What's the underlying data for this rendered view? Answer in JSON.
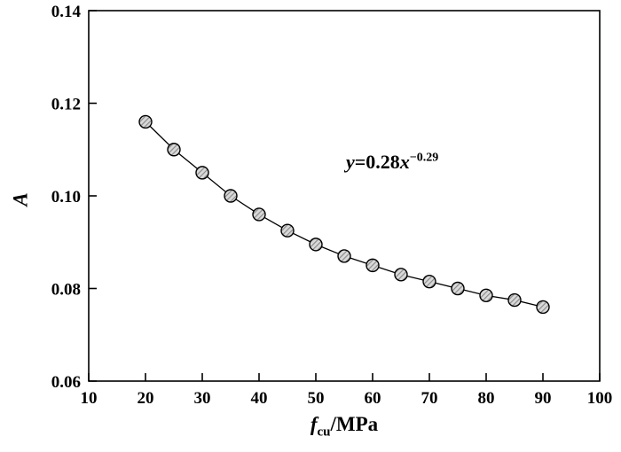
{
  "chart_data": {
    "type": "scatter",
    "title": "",
    "ylabel": "A",
    "xlabel": {
      "symbol": "f",
      "subscript": "cu",
      "unit": "/MPa"
    },
    "xlim": [
      10,
      100
    ],
    "ylim": [
      0.06,
      0.14
    ],
    "x_ticks": [
      10,
      20,
      30,
      40,
      50,
      60,
      70,
      80,
      90,
      100
    ],
    "y_ticks": [
      0.06,
      0.08,
      0.1,
      0.12,
      0.14
    ],
    "grid": false,
    "legend": "none",
    "annotation": {
      "lhs": "y",
      "mid": "=0.28",
      "base": "x",
      "exponent": "−0.29"
    },
    "x": [
      20,
      25,
      30,
      35,
      40,
      45,
      50,
      55,
      60,
      65,
      70,
      75,
      80,
      85,
      90
    ],
    "y": [
      0.116,
      0.11,
      0.105,
      0.1,
      0.096,
      0.0925,
      0.0895,
      0.087,
      0.085,
      0.083,
      0.0815,
      0.08,
      0.0785,
      0.0775,
      0.076
    ],
    "marker": {
      "shape": "circle",
      "fill": "#d9d9d9",
      "edge": "#000000"
    },
    "line_color": "#000000"
  }
}
